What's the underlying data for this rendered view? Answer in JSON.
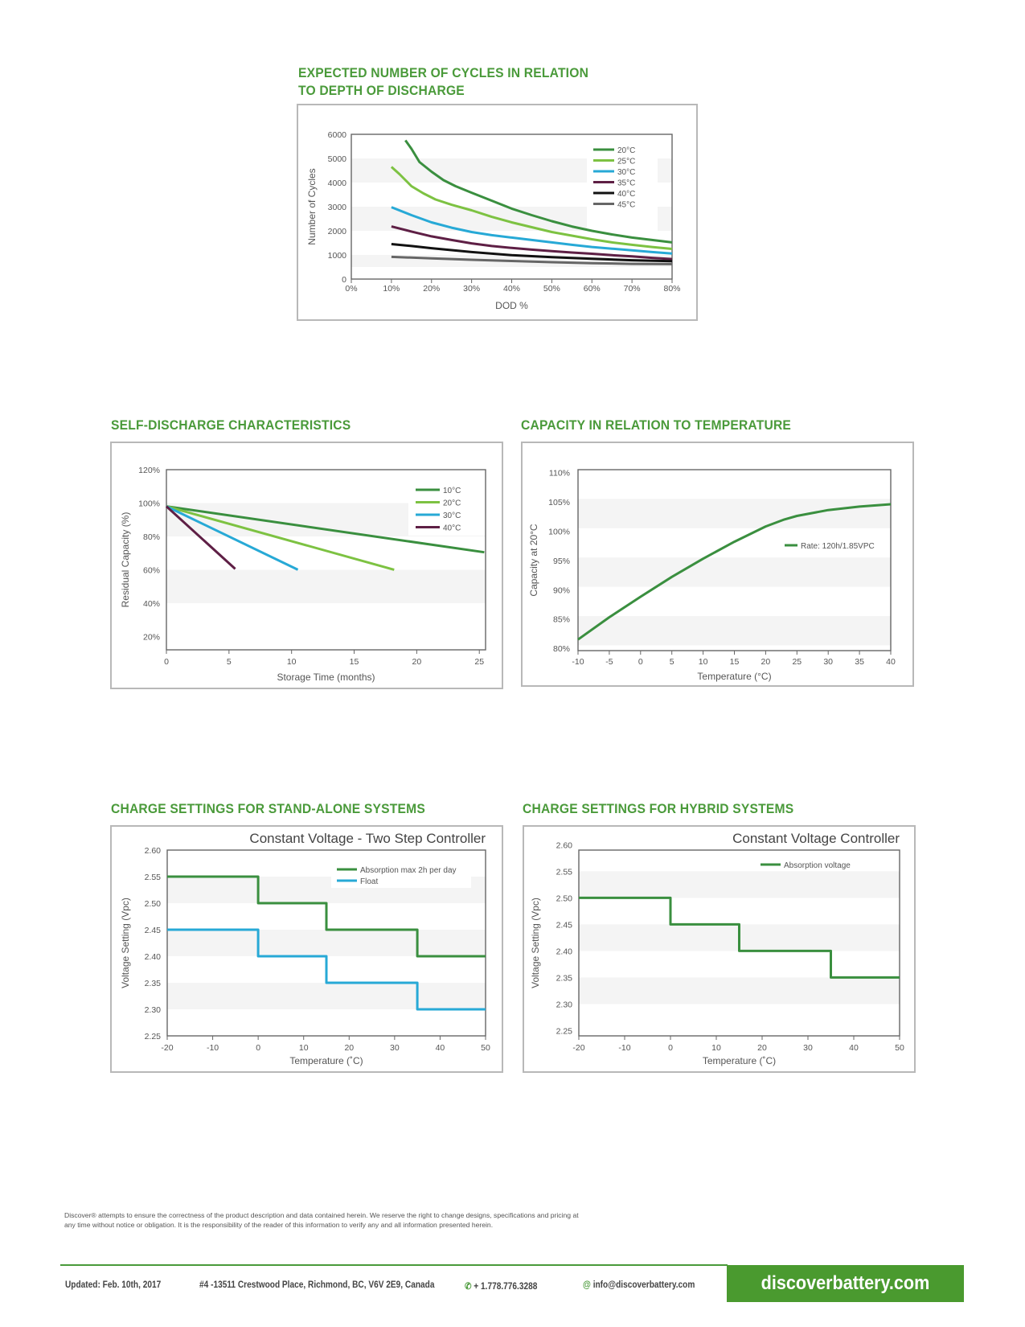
{
  "colors": {
    "brand_green": "#4a9a3a",
    "c20": "#3a8f3f",
    "c25": "#7dc242",
    "c30": "#27a9d6",
    "c35": "#5e1f45",
    "c40": "#111111",
    "c45": "#666666",
    "band": "#f4f4f4"
  },
  "sections": {
    "cycles_title_line1": "EXPECTED NUMBER OF CYCLES IN RELATION",
    "cycles_title_line2": "TO DEPTH OF DISCHARGE",
    "self_discharge_title": "SELF-DISCHARGE CHARACTERISTICS",
    "capacity_title": "CAPACITY IN RELATION TO TEMPERATURE",
    "standalone_title": "CHARGE SETTINGS FOR STAND-ALONE SYSTEMS",
    "hybrid_title": "CHARGE SETTINGS FOR HYBRID SYSTEMS"
  },
  "chart_data": [
    {
      "id": "cycles",
      "type": "line",
      "title": "EXPECTED NUMBER OF CYCLES IN RELATION TO DEPTH OF DISCHARGE",
      "xlabel": "DOD %",
      "ylabel": "Number of Cycles",
      "xlim": [
        0,
        80
      ],
      "ylim": [
        0,
        6000
      ],
      "xticks": [
        0,
        10,
        20,
        30,
        40,
        50,
        60,
        70,
        80
      ],
      "xtick_labels": [
        "0%",
        "10%",
        "20%",
        "30%",
        "40%",
        "50%",
        "60%",
        "70%",
        "80%"
      ],
      "yticks": [
        0,
        1000,
        2000,
        3000,
        4000,
        5000,
        6000
      ],
      "ytick_labels": [
        "0",
        "1000",
        "2000",
        "3000",
        "4000",
        "5000",
        "6000"
      ],
      "bands": [
        [
          500,
          1000
        ],
        [
          2000,
          3000
        ],
        [
          4000,
          5000
        ]
      ],
      "legend_position": "top-right",
      "series": [
        {
          "name": "20°C",
          "color": "#3a8f3f",
          "x": [
            13.5,
            15,
            17,
            20,
            23,
            26,
            30,
            35,
            40,
            45,
            50,
            55,
            60,
            65,
            70,
            75,
            80
          ],
          "y": [
            5750,
            5400,
            4850,
            4450,
            4100,
            3850,
            3580,
            3250,
            2920,
            2650,
            2400,
            2180,
            2000,
            1850,
            1720,
            1620,
            1520
          ]
        },
        {
          "name": "25°C",
          "color": "#7dc242",
          "x": [
            10,
            12,
            15,
            18,
            21,
            25,
            30,
            35,
            40,
            45,
            50,
            55,
            60,
            65,
            70,
            75,
            80
          ],
          "y": [
            4650,
            4350,
            3850,
            3550,
            3300,
            3080,
            2850,
            2580,
            2350,
            2150,
            1950,
            1800,
            1650,
            1520,
            1420,
            1330,
            1250
          ]
        },
        {
          "name": "30°C",
          "color": "#27a9d6",
          "x": [
            10,
            15,
            20,
            25,
            30,
            35,
            40,
            45,
            50,
            55,
            60,
            65,
            70,
            75,
            80
          ],
          "y": [
            2980,
            2650,
            2350,
            2130,
            1950,
            1820,
            1720,
            1620,
            1520,
            1420,
            1330,
            1260,
            1190,
            1120,
            1060
          ]
        },
        {
          "name": "35°C",
          "color": "#5e1f45",
          "x": [
            10,
            15,
            20,
            25,
            30,
            35,
            40,
            45,
            50,
            55,
            60,
            65,
            70,
            75,
            80
          ],
          "y": [
            2180,
            1970,
            1770,
            1620,
            1480,
            1370,
            1290,
            1220,
            1160,
            1100,
            1050,
            990,
            940,
            880,
            830
          ]
        },
        {
          "name": "40°C",
          "color": "#111111",
          "x": [
            10,
            15,
            20,
            30,
            40,
            50,
            60,
            70,
            80
          ],
          "y": [
            1450,
            1370,
            1280,
            1120,
            990,
            910,
            840,
            780,
            740
          ]
        },
        {
          "name": "45°C",
          "color": "#666666",
          "x": [
            10,
            20,
            30,
            40,
            50,
            60,
            70,
            80
          ],
          "y": [
            920,
            860,
            800,
            750,
            700,
            660,
            630,
            620
          ]
        }
      ]
    },
    {
      "id": "selfdischarge",
      "type": "line",
      "title": "SELF-DISCHARGE CHARACTERISTICS",
      "xlabel": "Storage Time (months)",
      "ylabel": "Residual Capacity (%)",
      "xlim": [
        0,
        25.5
      ],
      "ylim": [
        12,
        120
      ],
      "xticks": [
        0,
        5,
        10,
        15,
        20,
        25
      ],
      "xtick_labels": [
        "0",
        "5",
        "10",
        "15",
        "20",
        "25"
      ],
      "yticks": [
        20,
        40,
        60,
        80,
        100,
        120
      ],
      "ytick_labels": [
        "20%",
        "40%",
        "60%",
        "80%",
        "100%",
        "120%"
      ],
      "bands": [
        [
          40,
          60
        ],
        [
          80,
          100
        ]
      ],
      "legend_position": "top-right",
      "series": [
        {
          "name": "10°C",
          "color": "#3a8f3f",
          "x": [
            0,
            25.4
          ],
          "y": [
            98,
            70.5
          ]
        },
        {
          "name": "20°C",
          "color": "#7dc242",
          "x": [
            0,
            18.2
          ],
          "y": [
            98,
            60
          ]
        },
        {
          "name": "30°C",
          "color": "#27a9d6",
          "x": [
            0,
            10.5
          ],
          "y": [
            98,
            60
          ]
        },
        {
          "name": "40°C",
          "color": "#5e1f45",
          "x": [
            0,
            5.5
          ],
          "y": [
            98,
            60.5
          ]
        }
      ]
    },
    {
      "id": "capacity",
      "type": "line",
      "title": "CAPACITY IN RELATION TO TEMPERATURE",
      "xlabel": "Temperature (°C)",
      "ylabel": "Capacity at 20°C",
      "xlim": [
        -10,
        40
      ],
      "ylim": [
        79.6,
        110.5
      ],
      "xticks": [
        -10,
        -5,
        0,
        5,
        10,
        15,
        20,
        25,
        30,
        35,
        40
      ],
      "xtick_labels": [
        "-10",
        "-5",
        "0",
        "5",
        "10",
        "15",
        "20",
        "25",
        "30",
        "35",
        "40"
      ],
      "yticks": [
        80,
        85,
        90,
        95,
        100,
        105,
        110
      ],
      "ytick_labels": [
        "80%",
        "85%",
        "90%",
        "95%",
        "100%",
        "105%",
        "110%"
      ],
      "bands": [
        [
          80.5,
          85.5
        ],
        [
          90.5,
          95.5
        ],
        [
          100.5,
          105.5
        ]
      ],
      "legend_position": "right",
      "series": [
        {
          "name": "Rate: 120h/1.85VPC",
          "color": "#3a8f3f",
          "x": [
            -10,
            -5,
            0,
            5,
            10,
            15,
            20,
            23,
            25,
            30,
            35,
            40
          ],
          "y": [
            81.5,
            85.3,
            88.8,
            92.2,
            95.3,
            98.2,
            100.8,
            102.0,
            102.6,
            103.6,
            104.2,
            104.6
          ]
        }
      ]
    },
    {
      "id": "standalone",
      "type": "line",
      "title": "CHARGE SETTINGS FOR STAND-ALONE SYSTEMS",
      "subtitle": "Constant Voltage - Two Step Controller",
      "xlabel": "Temperature (˚C)",
      "ylabel": "Voltage Setting (Vpc)",
      "xlim": [
        -20,
        50
      ],
      "ylim": [
        2.25,
        2.6
      ],
      "xticks": [
        -20,
        -10,
        0,
        10,
        20,
        30,
        40,
        50
      ],
      "xtick_labels": [
        "-20",
        "-10",
        "0",
        "10",
        "20",
        "30",
        "40",
        "50"
      ],
      "yticks": [
        2.25,
        2.3,
        2.35,
        2.4,
        2.45,
        2.5,
        2.55,
        2.6
      ],
      "ytick_labels": [
        "2.25",
        "2.30",
        "2.35",
        "2.40",
        "2.45",
        "2.50",
        "2.55",
        "2.60"
      ],
      "bands": [
        [
          2.3,
          2.35
        ],
        [
          2.4,
          2.45
        ],
        [
          2.5,
          2.55
        ]
      ],
      "legend_position": "top-right",
      "series": [
        {
          "name": "Absorption max 2h per day",
          "color": "#3a8f3f",
          "step": true,
          "x": [
            -20,
            0,
            0,
            15,
            15,
            35,
            35,
            50
          ],
          "y": [
            2.55,
            2.55,
            2.5,
            2.5,
            2.45,
            2.45,
            2.4,
            2.4
          ]
        },
        {
          "name": "Float",
          "color": "#27a9d6",
          "step": true,
          "x": [
            -20,
            0,
            0,
            15,
            15,
            35,
            35,
            50
          ],
          "y": [
            2.45,
            2.45,
            2.4,
            2.4,
            2.35,
            2.35,
            2.3,
            2.3
          ]
        }
      ]
    },
    {
      "id": "hybrid",
      "type": "line",
      "title": "CHARGE SETTINGS FOR HYBRID SYSTEMS",
      "subtitle": "Constant Voltage Controller",
      "xlabel": "Temperature (˚C)",
      "ylabel": "Voltage Setting (Vpc)",
      "xlim": [
        -20,
        50
      ],
      "ylim": [
        2.24,
        2.59
      ],
      "xticks": [
        -20,
        -10,
        0,
        10,
        20,
        30,
        40,
        50
      ],
      "xtick_labels": [
        "-20",
        "-10",
        "0",
        "10",
        "20",
        "30",
        "40",
        "50"
      ],
      "yticks": [
        2.25,
        2.3,
        2.35,
        2.4,
        2.45,
        2.5,
        2.55,
        2.6
      ],
      "ytick_labels": [
        "2.25",
        "2.30",
        "2.35",
        "2.40",
        "2.45",
        "2.50",
        "2.55",
        "2.60"
      ],
      "bands": [
        [
          2.3,
          2.35
        ],
        [
          2.4,
          2.45
        ],
        [
          2.5,
          2.55
        ]
      ],
      "legend_position": "top-right",
      "series": [
        {
          "name": "Absorption voltage",
          "color": "#3a8f3f",
          "step": true,
          "x": [
            -20,
            0,
            0,
            15,
            15,
            35,
            35,
            50
          ],
          "y": [
            2.5,
            2.5,
            2.45,
            2.45,
            2.4,
            2.4,
            2.35,
            2.35
          ]
        }
      ]
    }
  ],
  "disclaimer": {
    "line1": "Discover® attempts to ensure the correctness of the product description and data contained herein.  We reserve the right to change designs, specifications and pricing at",
    "line2": "any time without notice or obligation.  It is the responsibility of the reader of this information to verify any and all information presented herein."
  },
  "footer": {
    "updated": "Updated: Feb. 10th, 2017",
    "address": "#4 -13511 Crestwood Place, Richmond, BC, V6V 2E9, Canada",
    "phone_icon": "phone-icon",
    "phone": "+ 1.778.776.3288",
    "email_icon": "at-icon",
    "email": "info@discoverbattery.com",
    "website": "discoverbattery.com"
  }
}
